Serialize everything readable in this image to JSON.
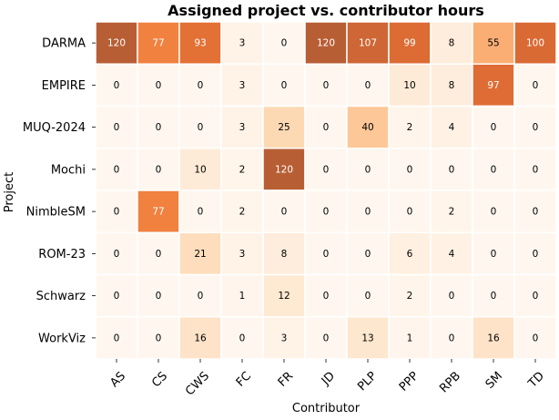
{
  "chart_data": {
    "type": "heatmap",
    "title": "Assigned project vs. contributor hours",
    "xlabel": "Contributor",
    "ylabel": "Project",
    "x_categories": [
      "AS",
      "CS",
      "CWS",
      "FC",
      "FR",
      "JD",
      "PLP",
      "PPP",
      "RPB",
      "SM",
      "TD"
    ],
    "y_categories": [
      "DARMA",
      "EMPIRE",
      "MUQ-2024",
      "Mochi",
      "NimbleSM",
      "ROM-23",
      "Schwarz",
      "WorkViz"
    ],
    "values": [
      [
        120,
        77,
        93,
        3,
        0,
        120,
        107,
        99,
        8,
        55,
        100
      ],
      [
        0,
        0,
        0,
        3,
        0,
        0,
        0,
        10,
        8,
        97,
        0
      ],
      [
        0,
        0,
        0,
        3,
        25,
        0,
        40,
        2,
        4,
        0,
        0
      ],
      [
        0,
        0,
        10,
        2,
        120,
        0,
        0,
        0,
        0,
        0,
        0
      ],
      [
        0,
        77,
        0,
        2,
        0,
        0,
        0,
        0,
        2,
        0,
        0
      ],
      [
        0,
        0,
        21,
        3,
        8,
        0,
        0,
        6,
        4,
        0,
        0
      ],
      [
        0,
        0,
        0,
        1,
        12,
        0,
        0,
        2,
        0,
        0,
        0
      ],
      [
        0,
        0,
        16,
        0,
        3,
        0,
        13,
        1,
        0,
        16,
        0
      ]
    ],
    "value_range": [
      0,
      120
    ],
    "colormap": [
      "#fff5eb",
      "#fdd0a2",
      "#fdae6b",
      "#f16913",
      "#d94801",
      "#a63603"
    ],
    "cell_labels": true,
    "colorbar": false,
    "grid": false
  }
}
